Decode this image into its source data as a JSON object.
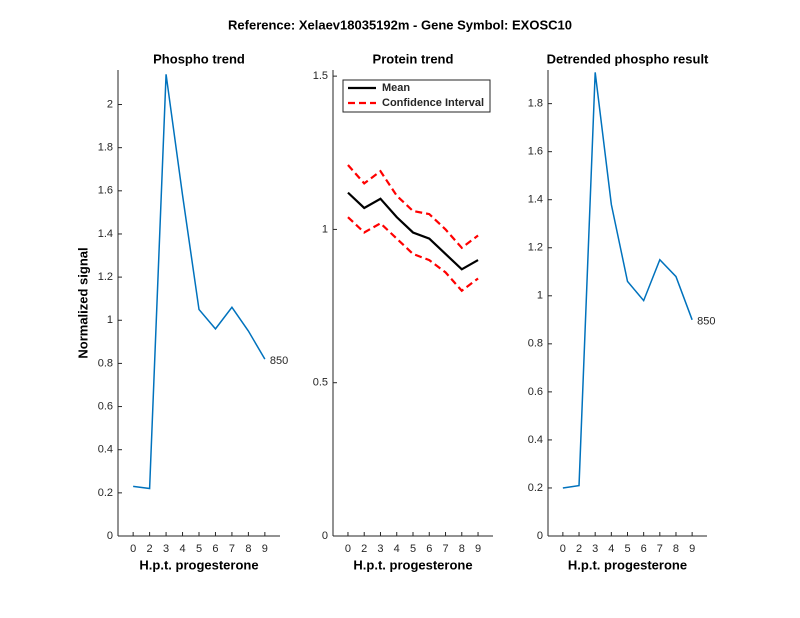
{
  "title": "Reference:  Xelaev18035192m - Gene Symbol:  EXOSC10",
  "chart_data": [
    {
      "type": "line",
      "title": "Phospho trend",
      "xlabel": "H.p.t. progesterone",
      "ylabel": "Normalized signal",
      "categories": [
        "0",
        "2",
        "3",
        "4",
        "5",
        "6",
        "7",
        "8",
        "9"
      ],
      "series": [
        {
          "color": "#0072bd",
          "values": [
            0.23,
            0.22,
            2.14,
            1.58,
            1.05,
            0.96,
            1.06,
            0.95,
            0.82
          ]
        }
      ],
      "end_label": "850",
      "ylim": [
        0,
        2.16
      ],
      "yticks": [
        0,
        0.2,
        0.4,
        0.6,
        0.8,
        1,
        1.2,
        1.4,
        1.6,
        1.8,
        2
      ]
    },
    {
      "type": "line",
      "title": "Protein trend",
      "xlabel": "H.p.t. progesterone",
      "categories": [
        "0",
        "2",
        "3",
        "4",
        "5",
        "6",
        "7",
        "8",
        "9"
      ],
      "series": [
        {
          "name": "Mean",
          "color": "#000000",
          "values": [
            1.12,
            1.07,
            1.1,
            1.04,
            0.99,
            0.97,
            0.92,
            0.87,
            0.9
          ]
        },
        {
          "name": "Confidence Interval",
          "color": "#ff0000",
          "dashed": true,
          "values": [
            1.21,
            1.15,
            1.19,
            1.11,
            1.06,
            1.05,
            1.0,
            0.94,
            0.98
          ]
        },
        {
          "color": "#ff0000",
          "dashed": true,
          "values": [
            1.04,
            0.99,
            1.02,
            0.97,
            0.92,
            0.9,
            0.86,
            0.8,
            0.84
          ]
        }
      ],
      "legend": "upper-left",
      "ylim": [
        0,
        1.52
      ],
      "yticks": [
        0,
        0.5,
        1,
        1.5
      ]
    },
    {
      "type": "line",
      "title": "Detrended phospho result",
      "xlabel": "H.p.t. progesterone",
      "categories": [
        "0",
        "2",
        "3",
        "4",
        "5",
        "6",
        "7",
        "8",
        "9"
      ],
      "series": [
        {
          "color": "#0072bd",
          "values": [
            0.2,
            0.21,
            1.93,
            1.38,
            1.06,
            0.98,
            1.15,
            1.08,
            0.9
          ]
        }
      ],
      "end_label": "850",
      "ylim": [
        0,
        1.94
      ],
      "yticks": [
        0,
        0.2,
        0.4,
        0.6,
        0.8,
        1,
        1.2,
        1.4,
        1.6,
        1.8
      ]
    }
  ]
}
